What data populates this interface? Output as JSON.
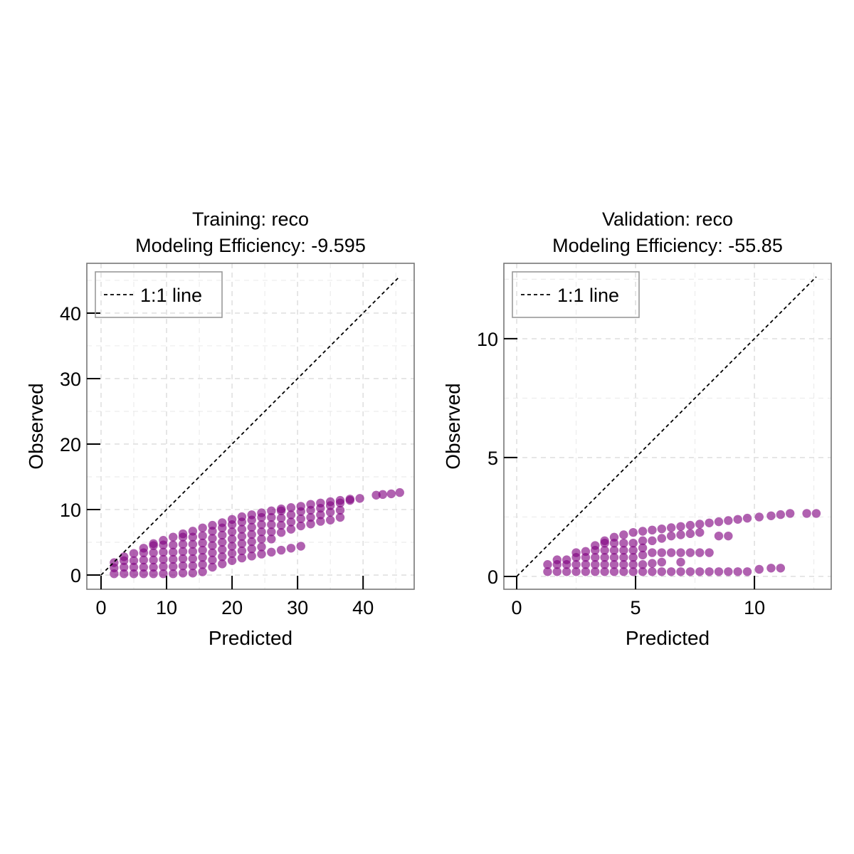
{
  "colors": {
    "points": "#800080",
    "line": "#000000",
    "grid": "#e0e0e0",
    "frame": "#777777"
  },
  "chart_data": [
    {
      "type": "scatter",
      "title_line1": "Training: reco",
      "title_line2": "Modeling Efficiency: -9.595",
      "xlabel": "Predicted",
      "ylabel": "Observed",
      "xlim": [
        -2.17,
        47.8
      ],
      "ylim": [
        -2.17,
        47.6
      ],
      "xticks": [
        0,
        10,
        20,
        30,
        40
      ],
      "yticks": [
        0,
        10,
        20,
        30,
        40
      ],
      "minor_grid": [
        5,
        15,
        25,
        35,
        45
      ],
      "grid": true,
      "legend": {
        "label": "1:1 line",
        "placement": "top-left"
      },
      "reference_line": {
        "name": "1:1 line",
        "from": 0,
        "to": 45.6,
        "style": "dashed"
      },
      "columns": [
        [
          2,
          [
            0.2,
            1.1,
            1.9
          ]
        ],
        [
          3.5,
          [
            0.2,
            1.2,
            2.2,
            2.8
          ]
        ],
        [
          5,
          [
            0.2,
            1.2,
            2.2,
            3.3
          ]
        ],
        [
          6.5,
          [
            0.2,
            1.2,
            2.3,
            3.4,
            4.1
          ]
        ],
        [
          8,
          [
            0.2,
            1.2,
            2.3,
            3.4,
            4.5,
            4.8
          ]
        ],
        [
          9.5,
          [
            0.2,
            1.3,
            2.4,
            3.5,
            4.6,
            5.3
          ]
        ],
        [
          11,
          [
            0.2,
            1.3,
            2.4,
            3.5,
            4.6,
            5.8
          ]
        ],
        [
          12.5,
          [
            0.3,
            1.4,
            2.5,
            3.6,
            4.7,
            5.8,
            6.3
          ]
        ],
        [
          14,
          [
            0.3,
            1.4,
            2.5,
            3.6,
            4.7,
            5.8,
            6.7
          ]
        ],
        [
          15.5,
          [
            0.5,
            1.6,
            2.7,
            3.8,
            4.9,
            6.0,
            7.2
          ]
        ],
        [
          17,
          [
            1.2,
            2.3,
            3.4,
            4.5,
            5.6,
            6.7,
            7.6
          ]
        ],
        [
          18.5,
          [
            1.7,
            2.8,
            3.9,
            5.0,
            6.1,
            7.2,
            8.0
          ]
        ],
        [
          20,
          [
            2.2,
            3.3,
            4.4,
            5.5,
            6.6,
            7.7,
            8.5
          ]
        ],
        [
          21.5,
          [
            2.6,
            3.7,
            4.8,
            5.9,
            7.0,
            8.1,
            8.9
          ]
        ],
        [
          23,
          [
            2.9,
            4.0,
            5.1,
            6.2,
            7.3,
            8.4,
            9.2
          ]
        ],
        [
          24.5,
          [
            3.2,
            4.3,
            5.5,
            6.6,
            7.7,
            8.8,
            9.5
          ]
        ],
        [
          26,
          [
            3.5,
            5.5,
            6.6,
            7.7,
            8.8,
            9.8
          ]
        ],
        [
          27.5,
          [
            3.8,
            6.5,
            7.6,
            8.7,
            9.8,
            10.1
          ]
        ],
        [
          29,
          [
            4.1,
            7.0,
            8.1,
            9.2,
            10.3
          ]
        ],
        [
          30.5,
          [
            4.4,
            7.5,
            8.6,
            9.7,
            10.5
          ]
        ],
        [
          32,
          [
            7.8,
            8.8,
            9.9,
            10.8
          ]
        ],
        [
          33.5,
          [
            8.2,
            9.2,
            10.2,
            11.0
          ]
        ],
        [
          35,
          [
            8.4,
            9.6,
            10.6,
            11.2
          ]
        ],
        [
          36.5,
          [
            8.8,
            9.9,
            11.0,
            11.4
          ]
        ],
        [
          38,
          [
            11.4,
            11.6
          ]
        ],
        [
          39.5,
          [
            11.7
          ]
        ],
        [
          42,
          [
            12.2
          ]
        ],
        [
          43,
          [
            12.3
          ]
        ],
        [
          44.3,
          [
            12.4
          ]
        ],
        [
          45.6,
          [
            12.6
          ]
        ]
      ]
    },
    {
      "type": "scatter",
      "title_line1": "Validation: reco",
      "title_line2": "Modeling Efficiency: -55.85",
      "xlabel": "Predicted",
      "ylabel": "Observed",
      "xlim": [
        -0.54,
        13.23
      ],
      "ylim": [
        -0.54,
        13.17
      ],
      "xticks": [
        0,
        5,
        10
      ],
      "yticks": [
        0,
        5,
        10
      ],
      "minor_grid": [
        2.5,
        7.5,
        12.5
      ],
      "grid": true,
      "legend": {
        "label": "1:1 line",
        "placement": "top-left"
      },
      "reference_line": {
        "name": "1:1 line",
        "from": 0,
        "to": 12.6,
        "style": "dashed"
      },
      "columns": [
        [
          1.3,
          [
            0.2,
            0.5
          ]
        ],
        [
          1.7,
          [
            0.2,
            0.5,
            0.7
          ]
        ],
        [
          2.1,
          [
            0.2,
            0.5,
            0.7
          ]
        ],
        [
          2.5,
          [
            0.2,
            0.5,
            0.8,
            1.0
          ]
        ],
        [
          2.9,
          [
            0.2,
            0.5,
            0.8,
            1.05
          ]
        ],
        [
          3.3,
          [
            0.2,
            0.5,
            0.8,
            1.1,
            1.3
          ]
        ],
        [
          3.7,
          [
            0.2,
            0.5,
            0.8,
            1.1,
            1.4,
            1.5
          ]
        ],
        [
          4.1,
          [
            0.2,
            0.5,
            0.8,
            1.1,
            1.4,
            1.65
          ]
        ],
        [
          4.5,
          [
            0.2,
            0.5,
            0.8,
            1.1,
            1.4,
            1.75
          ]
        ],
        [
          4.9,
          [
            0.2,
            0.5,
            0.8,
            1.1,
            1.4,
            1.85
          ]
        ],
        [
          5.3,
          [
            0.2,
            0.5,
            0.9,
            1.2,
            1.5,
            1.9
          ]
        ],
        [
          5.7,
          [
            0.2,
            0.55,
            1.0,
            1.5,
            1.95
          ]
        ],
        [
          6.1,
          [
            0.2,
            0.6,
            1.0,
            1.6,
            2.0
          ]
        ],
        [
          6.5,
          [
            0.2,
            1.0,
            1.7,
            2.05
          ]
        ],
        [
          6.9,
          [
            0.2,
            0.6,
            1.0,
            1.75,
            2.1
          ]
        ],
        [
          7.3,
          [
            0.2,
            1.0,
            1.8,
            2.15
          ]
        ],
        [
          7.7,
          [
            0.2,
            1.0,
            1.85,
            2.2
          ]
        ],
        [
          8.1,
          [
            0.2,
            1.0,
            2.25
          ]
        ],
        [
          8.5,
          [
            0.2,
            1.7,
            2.3
          ]
        ],
        [
          8.9,
          [
            0.2,
            1.7,
            2.35
          ]
        ],
        [
          9.3,
          [
            0.2,
            2.4
          ]
        ],
        [
          9.7,
          [
            0.2,
            2.45
          ]
        ],
        [
          10.2,
          [
            0.3,
            2.5
          ]
        ],
        [
          10.7,
          [
            0.35,
            2.55
          ]
        ],
        [
          11.1,
          [
            0.35,
            2.6
          ]
        ],
        [
          11.5,
          [
            2.65
          ]
        ],
        [
          12.2,
          [
            2.65
          ]
        ],
        [
          12.6,
          [
            2.65
          ]
        ]
      ]
    }
  ]
}
